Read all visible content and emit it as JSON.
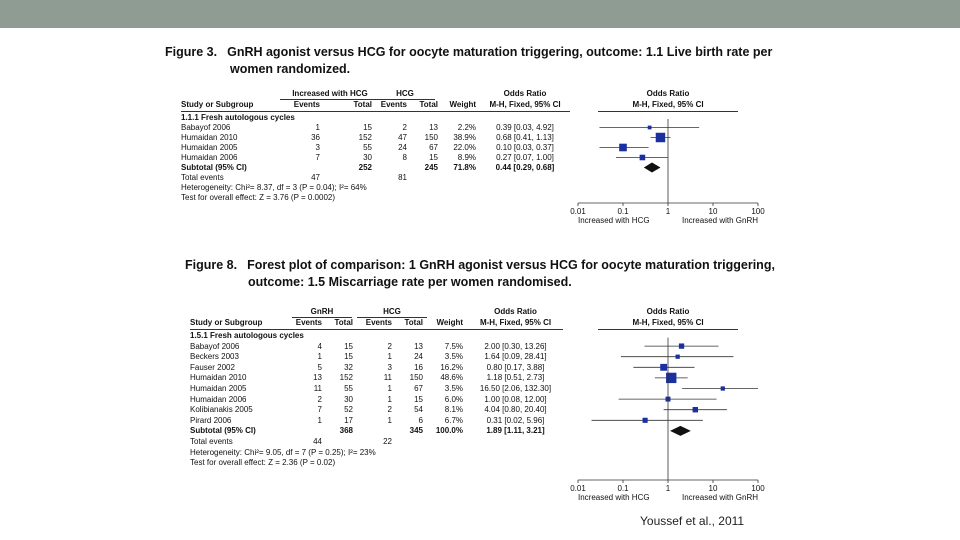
{
  "figure3": {
    "label": "Figure 3.",
    "title_line1": "GnRH agonist versus HCG for oocyte maturation triggering, outcome: 1.1 Live birth rate per",
    "title_line2": "women randomized.",
    "header": {
      "group1": "Increased with HCG",
      "group2": "HCG",
      "study": "Study or Subgroup",
      "events1": "Events",
      "total1": "Total",
      "events2": "Events",
      "total2": "Total",
      "weight": "Weight",
      "or_title": "Odds Ratio",
      "or_method": "M-H, Fixed, 95% CI",
      "plot_title": "Odds Ratio",
      "plot_method": "M-H, Fixed, 95% CI"
    },
    "subgroup": "1.1.1 Fresh autologous cycles",
    "rows": [
      {
        "study": "Babayof 2006",
        "e1": "1",
        "t1": "15",
        "e2": "2",
        "t2": "13",
        "weight": "2.2%",
        "ci": "0.39 [0.03, 4.92]"
      },
      {
        "study": "Humaidan 2010",
        "e1": "36",
        "t1": "152",
        "e2": "47",
        "t2": "150",
        "weight": "38.9%",
        "ci": "0.68 [0.41, 1.13]"
      },
      {
        "study": "Humaidan 2005",
        "e1": "3",
        "t1": "55",
        "e2": "24",
        "t2": "67",
        "weight": "22.0%",
        "ci": "0.10 [0.03, 0.37]"
      },
      {
        "study": "Humaidan 2006",
        "e1": "7",
        "t1": "30",
        "e2": "8",
        "t2": "15",
        "weight": "8.9%",
        "ci": "0.27 [0.07, 1.00]"
      }
    ],
    "subtotal": {
      "label": "Subtotal (95% CI)",
      "t1": "252",
      "t2": "245",
      "weight": "71.8%",
      "ci": "0.44 [0.29, 0.68]"
    },
    "total_events": {
      "label": "Total events",
      "e1": "47",
      "e2": "81"
    },
    "heterogeneity": "Heterogeneity: Chi²= 8.37, df = 3 (P = 0.04); I²= 64%",
    "overall": "Test for overall effect: Z = 3.76 (P = 0.0002)",
    "axis": {
      "ticks": [
        "0.01",
        "0.1",
        "1",
        "10",
        "100"
      ],
      "left_label": "Increased with HCG",
      "right_label": "Increased with GnRH"
    }
  },
  "figure8": {
    "label": "Figure 8.",
    "title_line1": "Forest plot of comparison: 1 GnRH agonist versus HCG for oocyte maturation triggering,",
    "title_line2": "outcome: 1.5 Miscarriage rate per women randomised.",
    "header": {
      "group1": "GnRH",
      "group2": "HCG",
      "study": "Study or Subgroup",
      "events1": "Events",
      "total1": "Total",
      "events2": "Events",
      "total2": "Total",
      "weight": "Weight",
      "or_title": "Odds Ratio",
      "or_method": "M-H, Fixed, 95% CI",
      "plot_title": "Odds Ratio",
      "plot_method": "M-H, Fixed, 95% CI"
    },
    "subgroup": "1.5.1 Fresh autologous cycles",
    "rows": [
      {
        "study": "Babayof 2006",
        "e1": "4",
        "t1": "15",
        "e2": "2",
        "t2": "13",
        "weight": "7.5%",
        "ci": "2.00 [0.30, 13.26]"
      },
      {
        "study": "Beckers 2003",
        "e1": "1",
        "t1": "15",
        "e2": "1",
        "t2": "24",
        "weight": "3.5%",
        "ci": "1.64 [0.09, 28.41]"
      },
      {
        "study": "Fauser 2002",
        "e1": "5",
        "t1": "32",
        "e2": "3",
        "t2": "16",
        "weight": "16.2%",
        "ci": "0.80 [0.17, 3.88]"
      },
      {
        "study": "Humaidan 2010",
        "e1": "13",
        "t1": "152",
        "e2": "11",
        "t2": "150",
        "weight": "48.6%",
        "ci": "1.18 [0.51, 2.73]"
      },
      {
        "study": "Humaidan 2005",
        "e1": "11",
        "t1": "55",
        "e2": "1",
        "t2": "67",
        "weight": "3.5%",
        "ci": "16.50 [2.06, 132.30]"
      },
      {
        "study": "Humaidan 2006",
        "e1": "2",
        "t1": "30",
        "e2": "1",
        "t2": "15",
        "weight": "6.0%",
        "ci": "1.00 [0.08, 12.00]"
      },
      {
        "study": "Kolibianakis 2005",
        "e1": "7",
        "t1": "52",
        "e2": "2",
        "t2": "54",
        "weight": "8.1%",
        "ci": "4.04 [0.80, 20.40]"
      },
      {
        "study": "Pirard 2006",
        "e1": "1",
        "t1": "17",
        "e2": "1",
        "t2": "6",
        "weight": "6.7%",
        "ci": "0.31 [0.02, 5.96]"
      }
    ],
    "subtotal": {
      "label": "Subtotal (95% CI)",
      "t1": "368",
      "t2": "345",
      "weight": "100.0%",
      "ci": "1.89 [1.11, 3.21]"
    },
    "total_events": {
      "label": "Total events",
      "e1": "44",
      "e2": "22"
    },
    "heterogeneity": "Heterogeneity: Chi²= 9.05, df = 7 (P = 0.25); I²= 23%",
    "overall": "Test for overall effect: Z = 2.36 (P = 0.02)",
    "axis": {
      "ticks": [
        "0.01",
        "0.1",
        "1",
        "10",
        "100"
      ],
      "left_label": "Increased with HCG",
      "right_label": "Increased with GnRH"
    }
  },
  "chart_data": [
    {
      "type": "scatter",
      "name": "forest-plot-live-birth",
      "x_scale": "log",
      "xlim": [
        0.01,
        100
      ],
      "x_ticks": [
        0.01,
        0.1,
        1,
        10,
        100
      ],
      "xlabel_left": "Increased with HCG",
      "xlabel_right": "Increased with GnRH",
      "studies": [
        {
          "study": "Babayof 2006",
          "or": 0.39,
          "lower": 0.03,
          "upper": 4.92,
          "weight": 2.2
        },
        {
          "study": "Humaidan 2010",
          "or": 0.68,
          "lower": 0.41,
          "upper": 1.13,
          "weight": 38.9
        },
        {
          "study": "Humaidan 2005",
          "or": 0.1,
          "lower": 0.03,
          "upper": 0.37,
          "weight": 22.0
        },
        {
          "study": "Humaidan 2006",
          "or": 0.27,
          "lower": 0.07,
          "upper": 1.0,
          "weight": 8.9
        }
      ],
      "summary": {
        "or": 0.44,
        "lower": 0.29,
        "upper": 0.68
      }
    },
    {
      "type": "scatter",
      "name": "forest-plot-miscarriage",
      "x_scale": "log",
      "xlim": [
        0.01,
        100
      ],
      "x_ticks": [
        0.01,
        0.1,
        1,
        10,
        100
      ],
      "xlabel_left": "Increased with HCG",
      "xlabel_right": "Increased with GnRH",
      "studies": [
        {
          "study": "Babayof 2006",
          "or": 2.0,
          "lower": 0.3,
          "upper": 13.26,
          "weight": 7.5
        },
        {
          "study": "Beckers 2003",
          "or": 1.64,
          "lower": 0.09,
          "upper": 28.41,
          "weight": 3.5
        },
        {
          "study": "Fauser 2002",
          "or": 0.8,
          "lower": 0.17,
          "upper": 3.88,
          "weight": 16.2
        },
        {
          "study": "Humaidan 2010",
          "or": 1.18,
          "lower": 0.51,
          "upper": 2.73,
          "weight": 48.6
        },
        {
          "study": "Humaidan 2005",
          "or": 16.5,
          "lower": 2.06,
          "upper": 132.3,
          "weight": 3.5
        },
        {
          "study": "Humaidan 2006",
          "or": 1.0,
          "lower": 0.08,
          "upper": 12.0,
          "weight": 6.0
        },
        {
          "study": "Kolibianakis 2005",
          "or": 4.04,
          "lower": 0.8,
          "upper": 20.4,
          "weight": 8.1
        },
        {
          "study": "Pirard 2006",
          "or": 0.31,
          "lower": 0.02,
          "upper": 5.96,
          "weight": 6.7
        }
      ],
      "summary": {
        "or": 1.89,
        "lower": 1.11,
        "upper": 3.21
      }
    }
  ],
  "citation": "Youssef et al., 2011",
  "colors": {
    "topbar": "#8f9c94",
    "marker": "#1a2fa0",
    "ink": "#111111"
  }
}
